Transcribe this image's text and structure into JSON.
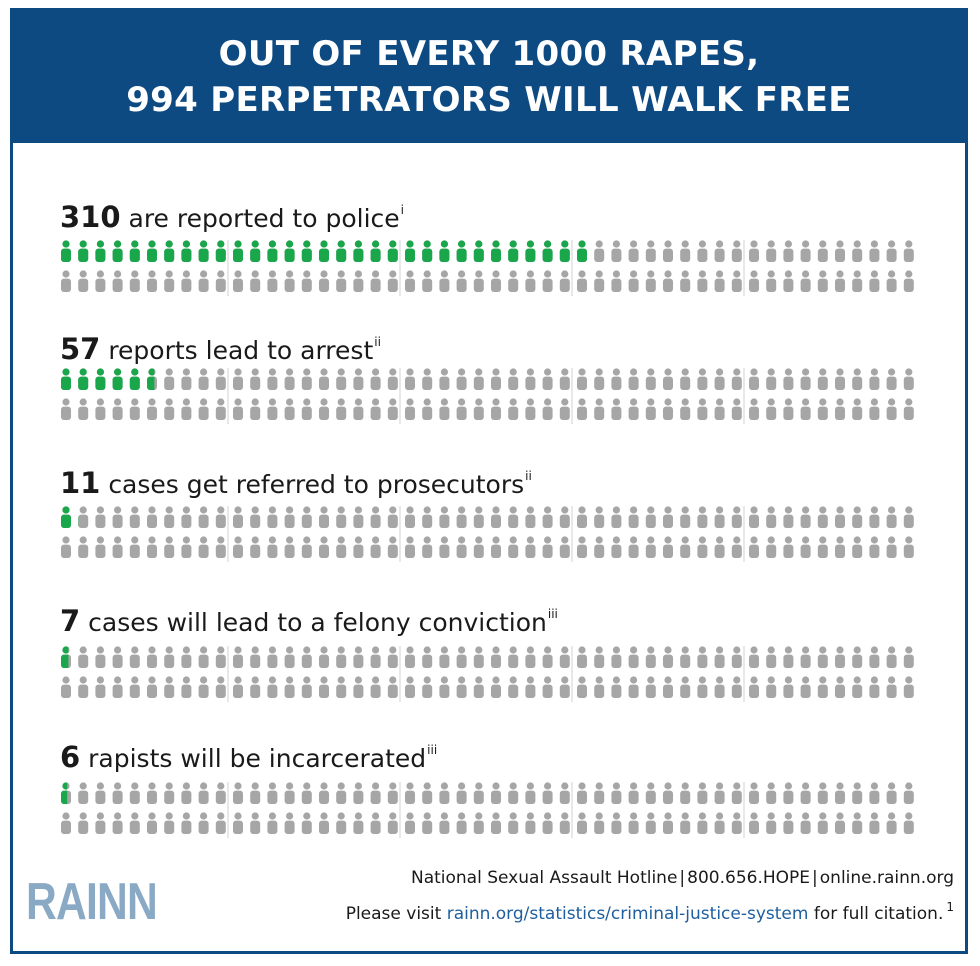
{
  "header": {
    "line1": "OUT OF EVERY 1000 RAPES,",
    "line2": "994 PERPETRATORS WILL WALK FREE"
  },
  "colors": {
    "brand_blue": "#0d4a82",
    "highlight_green": "#1aa64a",
    "figure_gray": "#a6a6a6",
    "logo_blue": "#8aa9c4",
    "link_blue": "#1f5fa0"
  },
  "chart_data": {
    "type": "pictogram",
    "total_per_row": 100,
    "icon": "person-icon",
    "rows": [
      {
        "value": 310,
        "highlighted": 31,
        "label": "are reported to police",
        "note": "i"
      },
      {
        "value": 57,
        "highlighted": 5.7,
        "label": "reports lead to arrest",
        "note": "ii"
      },
      {
        "value": 11,
        "highlighted": 1.1,
        "label": "cases get referred to prosecutors",
        "note": "ii"
      },
      {
        "value": 7,
        "highlighted": 0.7,
        "label": "cases will lead to a felony conviction",
        "note": "iii"
      },
      {
        "value": 6,
        "highlighted": 0.6,
        "label": "rapists will be incarcerated",
        "note": "iii"
      }
    ]
  },
  "footer": {
    "logo": "RAINN",
    "hotline_name": "National Sexual Assault Hotline",
    "phone": "800.656.HOPE",
    "site": "online.rainn.org",
    "sep": "|",
    "visit_prefix": "Please visit",
    "visit_link": "rainn.org/statistics/criminal-justice-system",
    "visit_suffix": "for full citation.",
    "footnote": "1"
  }
}
